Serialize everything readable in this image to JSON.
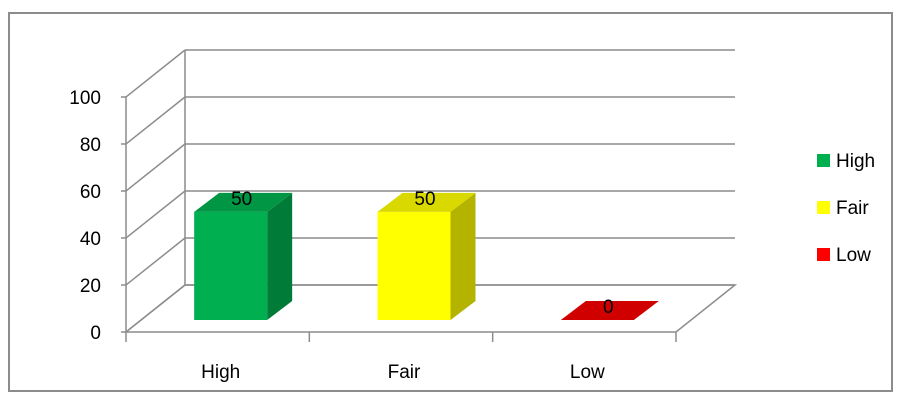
{
  "chart_data": {
    "type": "bar",
    "categories": [
      "High",
      "Fair",
      "Low"
    ],
    "values": [
      50,
      50,
      0
    ],
    "data_labels": [
      "50",
      "50",
      "0"
    ],
    "colors": [
      "#00b050",
      "#ffff00",
      "#ff0000"
    ],
    "ylim": [
      0,
      100
    ],
    "yticks": [
      "0",
      "20",
      "40",
      "60",
      "80",
      "100"
    ],
    "legend": {
      "placement": "right",
      "entries": [
        "High",
        "Fair",
        "Low"
      ]
    },
    "grid": true,
    "style": "3d-column"
  }
}
